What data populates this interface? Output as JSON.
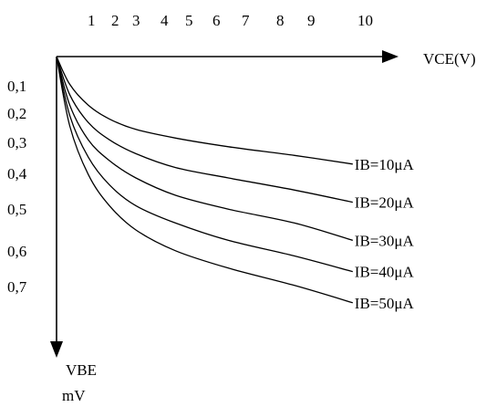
{
  "chart_data": {
    "type": "line",
    "title": "",
    "xlabel": "VCE(V)",
    "ylabel": [
      "VBE",
      "mV"
    ],
    "x_ticks": [
      "1",
      "2",
      "3",
      "4",
      "5",
      "6",
      "7",
      "8",
      "9",
      "10"
    ],
    "x_tick_values": [
      1,
      2,
      3,
      4,
      5,
      6,
      7,
      8,
      9,
      10
    ],
    "y_ticks": [
      "0,1",
      "0,2",
      "0,3",
      "0,4",
      "0,5",
      "0,6",
      "0,7"
    ],
    "y_tick_values": [
      0.1,
      0.2,
      0.3,
      0.4,
      0.5,
      0.6,
      0.7
    ],
    "xlim": [
      0,
      11.8
    ],
    "ylim": [
      0,
      1.0
    ],
    "y_direction": "down",
    "grid": false,
    "legend": "inline-right",
    "series": [
      {
        "name": "IB=10μA",
        "x": [
          0,
          0.5,
          1.2,
          2,
          3,
          4.5,
          6.5,
          9,
          11.2
        ],
        "y": [
          0,
          0.08,
          0.14,
          0.18,
          0.21,
          0.235,
          0.26,
          0.285,
          0.31
        ]
      },
      {
        "name": "IB=20μA",
        "x": [
          0,
          0.5,
          1.2,
          2,
          3,
          4.5,
          6.5,
          9,
          11.2
        ],
        "y": [
          0,
          0.11,
          0.19,
          0.24,
          0.28,
          0.32,
          0.35,
          0.385,
          0.42
        ]
      },
      {
        "name": "IB=30μA",
        "x": [
          0,
          0.5,
          1.2,
          2,
          3,
          4.5,
          6.5,
          9,
          11.2
        ],
        "y": [
          0,
          0.14,
          0.24,
          0.3,
          0.35,
          0.4,
          0.44,
          0.48,
          0.53
        ]
      },
      {
        "name": "IB=40μA",
        "x": [
          0,
          0.5,
          1.2,
          2,
          3,
          4.5,
          6.5,
          9,
          11.2
        ],
        "y": [
          0,
          0.17,
          0.29,
          0.37,
          0.43,
          0.48,
          0.53,
          0.575,
          0.62
        ]
      },
      {
        "name": "IB=50μA",
        "x": [
          0,
          0.5,
          1.2,
          2,
          3,
          4.5,
          6.5,
          9,
          11.2
        ],
        "y": [
          0,
          0.2,
          0.34,
          0.43,
          0.5,
          0.56,
          0.61,
          0.66,
          0.71
        ]
      }
    ]
  }
}
